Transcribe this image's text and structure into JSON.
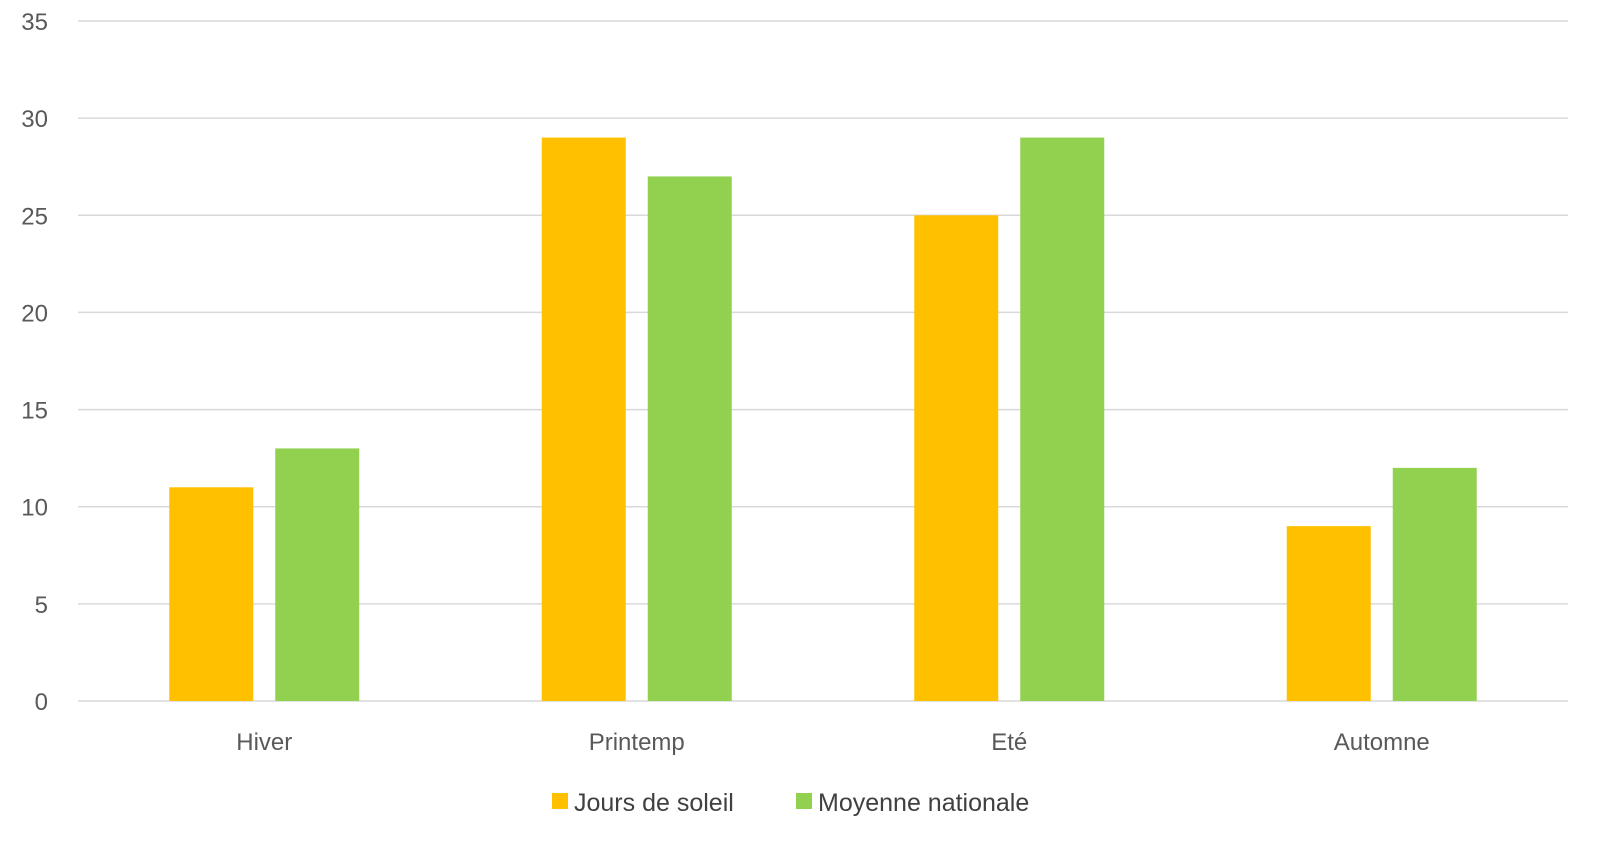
{
  "chart_data": {
    "type": "bar",
    "title": "",
    "xlabel": "",
    "ylabel": "",
    "categories": [
      "Hiver",
      "Printemp",
      "Eté",
      "Automne"
    ],
    "series": [
      {
        "name": "Jours de soleil",
        "values": [
          11,
          29,
          25,
          9
        ],
        "color": "#FFC000"
      },
      {
        "name": "Moyenne nationale",
        "values": [
          13,
          27,
          29,
          12
        ],
        "color": "#92D050"
      }
    ],
    "ylim": [
      0,
      35
    ],
    "yticks": [
      0,
      5,
      10,
      15,
      20,
      25,
      30,
      35
    ],
    "grid": true,
    "legend_position": "bottom-center"
  }
}
